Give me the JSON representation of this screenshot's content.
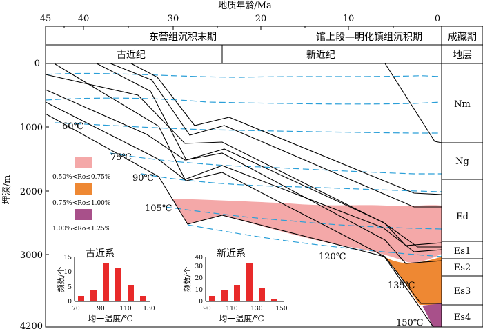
{
  "axis_top": {
    "title": "地质年龄/Ma",
    "ticks": [
      "45",
      "40",
      "30",
      "20",
      "10",
      "0"
    ]
  },
  "axis_left": {
    "title": "埋深/m",
    "ticks": [
      "0",
      "1000",
      "2000",
      "3000",
      "4200"
    ]
  },
  "header": {
    "period1": "东营组沉积末期",
    "period2": "馆上段—明化镇组沉积期",
    "period3": "成藏期",
    "era1": "古近纪",
    "era2": "新近纪",
    "strata_label": "地层"
  },
  "strata": [
    "Nm",
    "Ng",
    "Ed",
    "Es1",
    "Es2",
    "Es3",
    "Es4"
  ],
  "isotherms": [
    "60℃",
    "75℃",
    "90℃",
    "105℃",
    "120℃",
    "135℃",
    "150℃"
  ],
  "legend": [
    {
      "label": "0.50%<Ro≤0.75%",
      "color": "#f4a8a8"
    },
    {
      "label": "0.75%<Ro≤1.00%",
      "color": "#ee8833"
    },
    {
      "label": "1.00%<Ro≤1.25%",
      "color": "#a8508a"
    }
  ],
  "hist1": {
    "title": "古近系",
    "xlabel": "均一温度/℃",
    "ylabel": "频数/个",
    "xticks": [
      "70",
      "90",
      "110",
      "130"
    ],
    "yticks": [
      "0",
      "5",
      "10",
      "15"
    ],
    "values": [
      2,
      4,
      14,
      12,
      6,
      2
    ],
    "ymax": 15,
    "color": "#e82a2a"
  },
  "hist2": {
    "title": "新近系",
    "xlabel": "均一温度/℃",
    "ylabel": "频数/个",
    "xticks": [
      "90",
      "110",
      "130",
      "150"
    ],
    "yticks": [
      "0",
      "10",
      "20",
      "30",
      "40"
    ],
    "values": [
      5,
      10,
      15,
      35,
      12,
      2
    ],
    "ymax": 40,
    "color": "#e82a2a"
  }
}
